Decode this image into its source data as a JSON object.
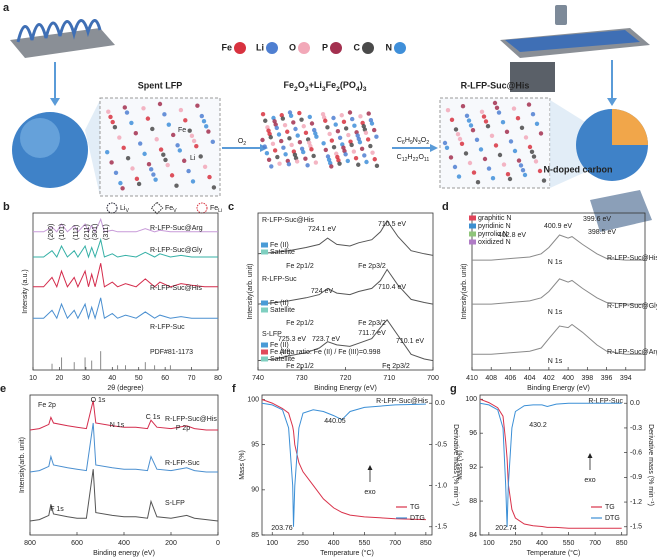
{
  "panel_a": {
    "panel": "a",
    "elements": [
      "Fe",
      "Li",
      "O",
      "P",
      "C",
      "N"
    ],
    "element_colors": [
      "#d8323f",
      "#4f7fd1",
      "#f2a8b8",
      "#a3304f",
      "#4a4a4a",
      "#3f8fd9"
    ],
    "stages": [
      "Spent LFP",
      "Fe2O3+Li3Fe2(PO4)3",
      "R-LFP-Suc@His"
    ],
    "reagents": [
      "O2",
      "C6H9N3O2",
      "C12H22O11"
    ],
    "defects": [
      {
        "base": "Li",
        "sub": "V"
      },
      {
        "base": "Fe",
        "sub": "V"
      },
      {
        "base": "Fe",
        "sub": "Li"
      }
    ],
    "site_labels": [
      "Fe",
      "Li"
    ],
    "product": "N-doped carbon"
  },
  "chart_data": [
    {
      "type": "line",
      "panel": "b",
      "xlabel": "2θ (degree)",
      "ylabel": "Intensity (a.u.)",
      "xlim": [
        10,
        80
      ],
      "xticks": [
        10,
        20,
        30,
        40,
        50,
        60,
        70,
        80
      ],
      "ylim": [
        0,
        100
      ],
      "x": [
        10,
        14,
        17.2,
        19,
        20.8,
        23,
        25.6,
        27,
        29.7,
        31,
        32.2,
        33.5,
        35.6,
        37,
        40,
        42,
        45,
        49,
        52.5,
        56,
        58,
        62,
        66,
        70,
        75,
        80
      ],
      "series": [
        {
          "name": "R-LFP-Suc@Arg",
          "color": "#c79ad8",
          "values": [
            88,
            88,
            91,
            88,
            93,
            88,
            92,
            88,
            93,
            88,
            92,
            88,
            96,
            88,
            89,
            88,
            88,
            88,
            90,
            88,
            89,
            88,
            88,
            88,
            88,
            88
          ]
        },
        {
          "name": "R-LFP-Suc@Gly",
          "color": "#35b0a6",
          "values": [
            72,
            72,
            76,
            72,
            79,
            72,
            76,
            72,
            79,
            72,
            78,
            72,
            83,
            72,
            74,
            72,
            73,
            72,
            75,
            72,
            74,
            72,
            73,
            72,
            72,
            72
          ]
        },
        {
          "name": "R-LFP-Suc@His",
          "color": "#d42c4c",
          "values": [
            53,
            53,
            59,
            53,
            63,
            53,
            59,
            53,
            63,
            53,
            61,
            53,
            68,
            53,
            56,
            53,
            55,
            53,
            58,
            53,
            56,
            53,
            55,
            54,
            53,
            53
          ]
        },
        {
          "name": "R-LFP-Suc",
          "color": "#4a8fd0",
          "values": [
            33,
            33,
            38,
            33,
            42,
            33,
            38,
            33,
            42,
            33,
            40,
            33,
            46,
            33,
            36,
            33,
            35,
            33,
            37,
            33,
            35,
            33,
            34,
            33,
            33,
            33
          ]
        },
        {
          "name": "PDF#81-1173",
          "color": "#8a8a8a",
          "style": "stick",
          "x": [
            17.2,
            20.8,
            25.6,
            29.7,
            32.2,
            35.6,
            42,
            45,
            52.5,
            56,
            62
          ],
          "values": [
            4,
            8,
            5,
            8,
            6,
            12,
            3,
            3,
            5,
            3,
            3
          ]
        }
      ],
      "annotations": [
        "(200)",
        "(101)",
        "(111)",
        "(211)",
        "(301)",
        "(311)"
      ]
    },
    {
      "type": "line",
      "panel": "c",
      "xlabel": "Binding Energy (eV)",
      "ylabel": "Intensity(arb. unit)",
      "xlim": [
        740,
        700
      ],
      "xticks": [
        740,
        730,
        720,
        710,
        700
      ],
      "ylim": [
        0,
        100
      ],
      "x": [
        740,
        736,
        733,
        729,
        726,
        724.1,
        722,
        719,
        717,
        714,
        712,
        710.5,
        708,
        705,
        702,
        700
      ],
      "series": [
        {
          "name": "R-LFP-Suc@His",
          "color": "#555555",
          "values": [
            74,
            75,
            76,
            78,
            80,
            84,
            80,
            79,
            81,
            83,
            88,
            95,
            85,
            76,
            74,
            73
          ]
        },
        {
          "name": "R-LFP-Suc",
          "color": "#555555",
          "values": [
            42,
            43,
            44,
            46,
            48,
            52,
            49,
            48,
            50,
            52,
            57,
            64,
            54,
            45,
            43,
            42
          ]
        },
        {
          "name": "S-LFP",
          "color": "#555555",
          "values": [
            6,
            7,
            9,
            11,
            14,
            18,
            16,
            15,
            17,
            20,
            27,
            32,
            22,
            10,
            7,
            6
          ]
        }
      ],
      "annotations": [
        "724.1 eV",
        "710.5 eV",
        "Fe 2p1/2",
        "Fe 2p3/2",
        "724 eV",
        "710.4 eV",
        "Fe 2p1/2",
        "Fe 2p3/2",
        "725.3 eV",
        "723.7 eV",
        "711.7 eV",
        "710.1 eV",
        "Fe 2p1/2",
        "Fe 2p3/2",
        "Area ratio: Fe (II) / Fe (III)=0.998"
      ],
      "components": [
        {
          "name": "Fe (II)",
          "color": "#4a9bd6"
        },
        {
          "name": "Satellite",
          "color": "#7fcfc0"
        },
        {
          "name": "Fe (II)",
          "color": "#4a9bd6"
        },
        {
          "name": "Satellite",
          "color": "#7fcfc0"
        },
        {
          "name": "Fe (II)",
          "color": "#4a9bd6"
        },
        {
          "name": "Fe (III)",
          "color": "#e04a5a"
        },
        {
          "name": "Satellite",
          "color": "#7fcfc0"
        }
      ]
    },
    {
      "type": "line",
      "panel": "d",
      "xlabel": "Binding Energy (eV)",
      "ylabel": "Intensity(arb. unit)",
      "xlim": [
        410,
        392
      ],
      "xticks": [
        410,
        408,
        406,
        404,
        402,
        400,
        398,
        396,
        394
      ],
      "ylim": [
        0,
        100
      ],
      "x": [
        410,
        408,
        406,
        404,
        402.8,
        402,
        400.9,
        400,
        399.6,
        398.5,
        397,
        396,
        394,
        392
      ],
      "series": [
        {
          "name": "R-LFP-Suc@His",
          "color": "#8a8a8a",
          "values": [
            70,
            70,
            71,
            72,
            74,
            78,
            86,
            84,
            85,
            80,
            74,
            71,
            70,
            70
          ]
        },
        {
          "name": "R-LFP-Suc@Gly",
          "color": "#8a8a8a",
          "values": [
            42,
            42,
            43,
            44,
            46,
            50,
            58,
            56,
            57,
            52,
            46,
            43,
            42,
            42
          ]
        },
        {
          "name": "R-LFP-Suc@Arg",
          "color": "#8a8a8a",
          "values": [
            10,
            10,
            11,
            12,
            14,
            20,
            28,
            27,
            29,
            24,
            16,
            12,
            10,
            10
          ]
        }
      ],
      "annotations": [
        "400.9 eV",
        "399.6 eV",
        "398.5 eV",
        "402.8 eV",
        "N 1s",
        "N 1s",
        "N 1s"
      ],
      "components": [
        {
          "name": "graphitic N",
          "color": "#e0455a"
        },
        {
          "name": "pyridinic N",
          "color": "#3c8fd0"
        },
        {
          "name": "pyrrolic N",
          "color": "#8fc57a"
        },
        {
          "name": "oxidized N",
          "color": "#b07cc6"
        }
      ]
    },
    {
      "type": "line",
      "panel": "e",
      "xlabel": "Binding energy (eV)",
      "ylabel": "Intensity(arb. unit)",
      "xlim": [
        800,
        0
      ],
      "xticks": [
        800,
        600,
        400,
        200,
        0
      ],
      "ylim": [
        0,
        100
      ],
      "x": [
        800,
        760,
        720,
        711,
        700,
        640,
        600,
        560,
        531,
        520,
        450,
        400,
        350,
        300,
        285,
        260,
        200,
        133,
        100,
        50,
        0
      ],
      "series": [
        {
          "name": "R-LFP-Suc@His",
          "color": "#d42c4c",
          "values": [
            75,
            76,
            79,
            84,
            80,
            78,
            77,
            76,
            96,
            80,
            78,
            77,
            77,
            76,
            82,
            77,
            76,
            78,
            76,
            75,
            75
          ]
        },
        {
          "name": "R-LFP-Suc",
          "color": "#4a8fd0",
          "values": [
            45,
            46,
            49,
            56,
            50,
            48,
            47,
            46,
            80,
            50,
            48,
            47,
            47,
            46,
            56,
            47,
            46,
            48,
            46,
            45,
            45
          ]
        },
        {
          "name": "S-LFP",
          "color": "#555555",
          "values": [
            10,
            11,
            14,
            22,
            15,
            13,
            12,
            12,
            47,
            16,
            14,
            13,
            13,
            12,
            24,
            13,
            12,
            14,
            12,
            11,
            10
          ]
        }
      ],
      "annotations": [
        "Fe 2p",
        "O 1s",
        "N 1s",
        "C 1s",
        "P 2p",
        "F 1s"
      ]
    },
    {
      "type": "line",
      "panel": "f",
      "title": "R-LFP-Suc@His",
      "xlabel": "Temperature (°C)",
      "ylabel": "Mass (%)",
      "y2label": "Derivative mass (% min⁻¹)",
      "xlim": [
        50,
        880
      ],
      "xticks": [
        100,
        250,
        400,
        550,
        700,
        850
      ],
      "ylim": [
        85,
        100.5
      ],
      "yticks": [
        85,
        90,
        95,
        100
      ],
      "y2lim": [
        -1.6,
        0.1
      ],
      "y2ticks": [
        {
          "value": 0,
          "label": "0.0"
        },
        -0.5,
        {
          "value": -1,
          "label": "-1.0"
        },
        -1.5
      ],
      "x": [
        50,
        100,
        150,
        180,
        200,
        203.76,
        210,
        230,
        250,
        300,
        350,
        400,
        440.05,
        480,
        550,
        700,
        850
      ],
      "series": [
        {
          "name": "TG",
          "color": "#d9324a",
          "values": [
            100,
            99.6,
            99,
            98.5,
            97,
            96.5,
            95,
            93,
            92,
            90.5,
            89,
            88,
            87.5,
            87.2,
            87,
            86.8,
            86.7
          ]
        },
        {
          "name": "DTG",
          "color": "#3b8fd6",
          "axis": "y2",
          "values": [
            0,
            -0.02,
            -0.08,
            -0.3,
            -1.0,
            -1.5,
            -1.0,
            -0.3,
            -0.12,
            -0.08,
            -0.1,
            -0.15,
            -0.2,
            -0.1,
            -0.05,
            -0.02,
            -0.01
          ]
        }
      ],
      "annotations": [
        "203.76",
        "440.05",
        "exo"
      ]
    },
    {
      "type": "line",
      "panel": "g",
      "title": "R-LFP-Suc",
      "xlabel": "Temperature (°C)",
      "ylabel": "Mass (%)",
      "y2label": "Derivative mass (% min⁻¹)",
      "xlim": [
        50,
        880
      ],
      "xticks": [
        100,
        250,
        400,
        550,
        700,
        850
      ],
      "ylim": [
        84,
        100.5
      ],
      "yticks": [
        84,
        88,
        92,
        96,
        100
      ],
      "y2lim": [
        -1.6,
        0.1
      ],
      "y2ticks": [
        {
          "value": 0,
          "label": "0.0"
        },
        -0.3,
        -0.6,
        -0.9,
        -1.2,
        -1.5
      ],
      "x": [
        50,
        100,
        150,
        180,
        195,
        202.74,
        210,
        230,
        250,
        300,
        350,
        400,
        430.2,
        480,
        550,
        700,
        850
      ],
      "series": [
        {
          "name": "TG",
          "color": "#d9324a",
          "values": [
            100,
            99.6,
            99,
            98,
            95,
            93,
            90,
            87,
            86,
            85.3,
            85.1,
            85,
            84.9,
            84.9,
            84.8,
            84.8,
            84.8
          ]
        },
        {
          "name": "DTG",
          "color": "#3b8fd6",
          "axis": "y2",
          "values": [
            0,
            -0.02,
            -0.08,
            -0.3,
            -1.0,
            -1.5,
            -1.0,
            -0.3,
            -0.1,
            -0.03,
            -0.02,
            -0.02,
            -0.04,
            -0.01,
            0,
            0,
            0
          ]
        }
      ],
      "annotations": [
        "202.74",
        "430.2",
        "exo"
      ]
    }
  ]
}
